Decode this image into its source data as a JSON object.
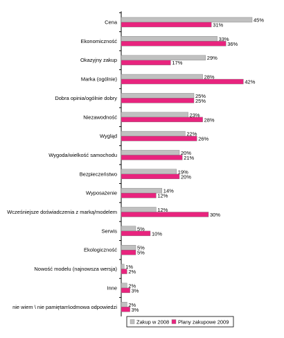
{
  "chart_data": {
    "type": "bar",
    "orientation": "horizontal",
    "categories": [
      "Cena",
      "Ekonomiczność",
      "Okazyjny zakup",
      "Marka (ogólnie)",
      "Dobra opinia/ogólnie dobry",
      "Niezawodność",
      "Wygląd",
      "Wygoda/wielkość samochodu",
      "Bezpieczeństwo",
      "Wyposażenie",
      "Wcześniejsze doświadczenia z marką/modelem",
      "Serwis",
      "Ekologiczność",
      "Nowość modelu (najnowsza wersja)",
      "Inne",
      "nie wiem \\ nie pamiętam\\odmowa odpowiedzi"
    ],
    "series": [
      {
        "name": "Zakup w 2008",
        "color": "#c0c0c0",
        "values": [
          45,
          33,
          29,
          28,
          25,
          23,
          22,
          20,
          19,
          14,
          12,
          5,
          5,
          1,
          2,
          2
        ],
        "labels": [
          "45%",
          "33%",
          "29%",
          "28%",
          "25%",
          "23%",
          "22%",
          "20%",
          "19%",
          "14%",
          "12%",
          "5%",
          "5%",
          "1%",
          "2%",
          "2%"
        ]
      },
      {
        "name": "Plany zakupowe 2009",
        "color": "#e8247e",
        "values": [
          31,
          36,
          17,
          42,
          25,
          28,
          26,
          21,
          20,
          12,
          30,
          10,
          5,
          2,
          3,
          3
        ],
        "labels": [
          "31%",
          "36%",
          "17%",
          "42%",
          "25%",
          "28%",
          "26%",
          "21%",
          "20%",
          "12%",
          "30%",
          "10%",
          "5%",
          "2%",
          "3%",
          "3%"
        ]
      }
    ],
    "xlim": [
      0,
      50
    ],
    "grid": false,
    "legend_position": "bottom-right"
  }
}
